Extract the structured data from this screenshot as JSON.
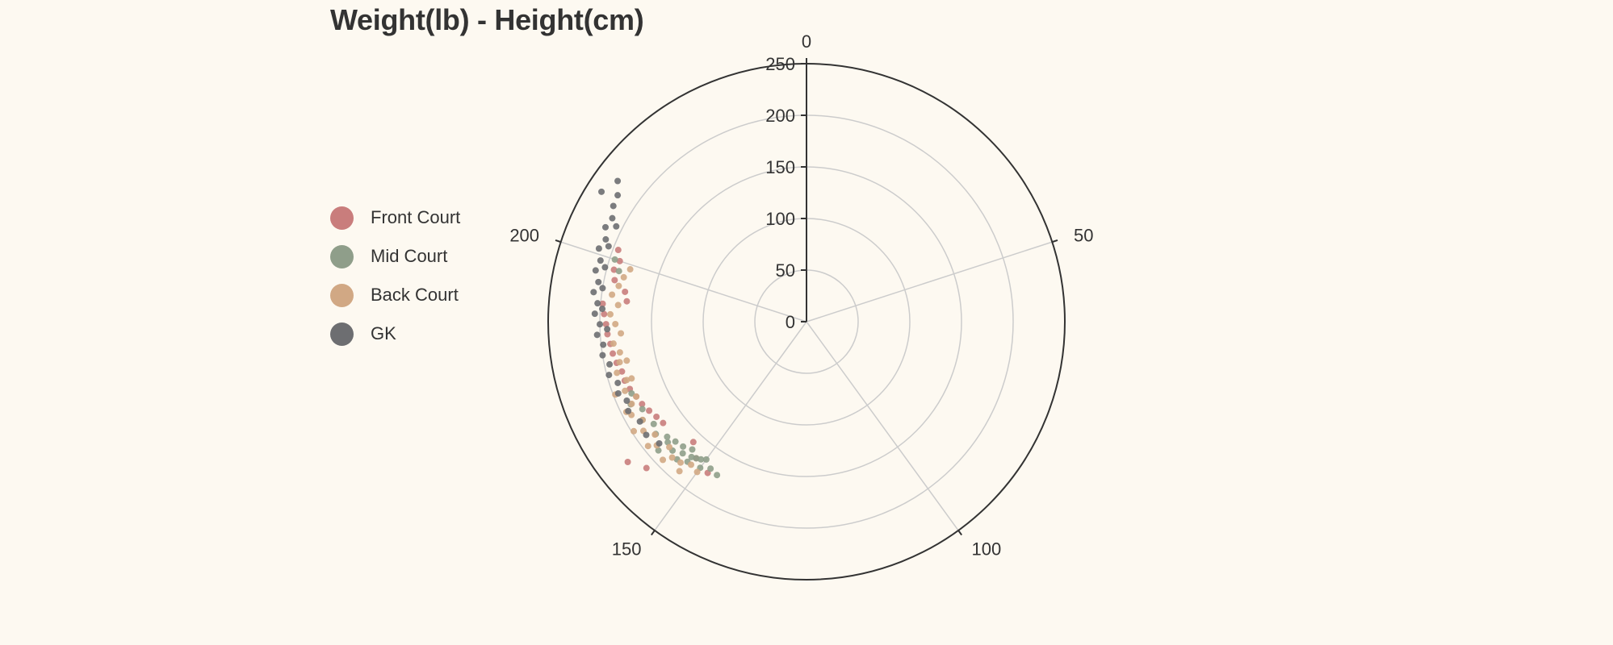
{
  "chart_data": {
    "type": "scatter",
    "coordinate_system": "polar",
    "title": "Weight(lb) - Height(cm)",
    "angle_axis": {
      "min": 0,
      "max": 250,
      "tick_labels": [
        "0",
        "50",
        "100",
        "150",
        "200"
      ],
      "ticks": [
        0,
        50,
        100,
        150,
        200
      ]
    },
    "radius_axis": {
      "min": 0,
      "max": 250,
      "tick_labels": [
        "0",
        "50",
        "100",
        "150",
        "200",
        "250"
      ],
      "ticks": [
        0,
        50,
        100,
        150,
        200,
        250
      ]
    },
    "grid": true,
    "legend_position": "left",
    "series": [
      {
        "name": "Front Court",
        "color": "#c97d7c",
        "points": [
          [
            163,
            170
          ],
          [
            165,
            172
          ],
          [
            167,
            175
          ],
          [
            169,
            178
          ],
          [
            171,
            180
          ],
          [
            173,
            183
          ],
          [
            175,
            185
          ],
          [
            177,
            185
          ],
          [
            179,
            188
          ],
          [
            181,
            190
          ],
          [
            183,
            191
          ],
          [
            185,
            193
          ],
          [
            187,
            194
          ],
          [
            189,
            196
          ],
          [
            191,
            198
          ],
          [
            192,
            175
          ],
          [
            194,
            178
          ],
          [
            196,
            190
          ],
          [
            198,
            193
          ],
          [
            200,
            190
          ],
          [
            202,
            195
          ],
          [
            158,
            210
          ],
          [
            161,
            220
          ],
          [
            152,
            170
          ],
          [
            148,
            175
          ],
          [
            155,
            160
          ]
        ]
      },
      {
        "name": "Mid Court",
        "color": "#8f9e8a",
        "points": [
          [
            146,
            172
          ],
          [
            148,
            170
          ],
          [
            150,
            165
          ],
          [
            150,
            175
          ],
          [
            151,
            168
          ],
          [
            152,
            170
          ],
          [
            153,
            172
          ],
          [
            153,
            178
          ],
          [
            154,
            166
          ],
          [
            155,
            175
          ],
          [
            156,
            170
          ],
          [
            157,
            180
          ],
          [
            158,
            172
          ],
          [
            159,
            178
          ],
          [
            160,
            175
          ],
          [
            162,
            182
          ],
          [
            164,
            178
          ],
          [
            166,
            185
          ],
          [
            168,
            180
          ],
          [
            170,
            188
          ],
          [
            200,
            195
          ],
          [
            198,
            188
          ],
          [
            159,
            190
          ],
          [
            172,
            183
          ],
          [
            155,
            183
          ]
        ]
      },
      {
        "name": "Back Court",
        "color": "#d1a884",
        "points": [
          [
            150,
            180
          ],
          [
            152,
            178
          ],
          [
            154,
            183
          ],
          [
            156,
            185
          ],
          [
            158,
            180
          ],
          [
            160,
            188
          ],
          [
            162,
            183
          ],
          [
            164,
            190
          ],
          [
            166,
            185
          ],
          [
            168,
            192
          ],
          [
            170,
            187
          ],
          [
            171,
            180
          ],
          [
            173,
            188
          ],
          [
            175,
            183
          ],
          [
            177,
            190
          ],
          [
            179,
            185
          ],
          [
            181,
            183
          ],
          [
            183,
            188
          ],
          [
            185,
            180
          ],
          [
            187,
            185
          ],
          [
            189,
            190
          ],
          [
            191,
            183
          ],
          [
            193,
            190
          ],
          [
            195,
            185
          ],
          [
            197,
            182
          ],
          [
            199,
            178
          ],
          [
            153,
            190
          ],
          [
            157,
            193
          ],
          [
            161,
            195
          ],
          [
            165,
            198
          ],
          [
            169,
            195
          ],
          [
            173,
            198
          ],
          [
            175,
            178
          ],
          [
            179,
            178
          ]
        ]
      },
      {
        "name": "GK",
        "color": "#6d6e71",
        "points": [
          [
            160,
            185
          ],
          [
            163,
            190
          ],
          [
            166,
            188
          ],
          [
            169,
            193
          ],
          [
            171,
            190
          ],
          [
            173,
            195
          ],
          [
            175,
            192
          ],
          [
            177,
            198
          ],
          [
            179,
            195
          ],
          [
            181,
            200
          ],
          [
            183,
            198
          ],
          [
            185,
            203
          ],
          [
            187,
            200
          ],
          [
            189,
            205
          ],
          [
            191,
            203
          ],
          [
            193,
            208
          ],
          [
            195,
            205
          ],
          [
            197,
            210
          ],
          [
            199,
            208
          ],
          [
            201,
            213
          ],
          [
            203,
            210
          ],
          [
            205,
            215
          ],
          [
            207,
            213
          ],
          [
            209,
            218
          ],
          [
            211,
            220
          ],
          [
            213,
            228
          ],
          [
            210,
            235
          ],
          [
            186,
            193
          ],
          [
            190,
            198
          ],
          [
            194,
            200
          ],
          [
            198,
            202
          ],
          [
            202,
            205
          ],
          [
            206,
            206
          ]
        ]
      }
    ]
  }
}
